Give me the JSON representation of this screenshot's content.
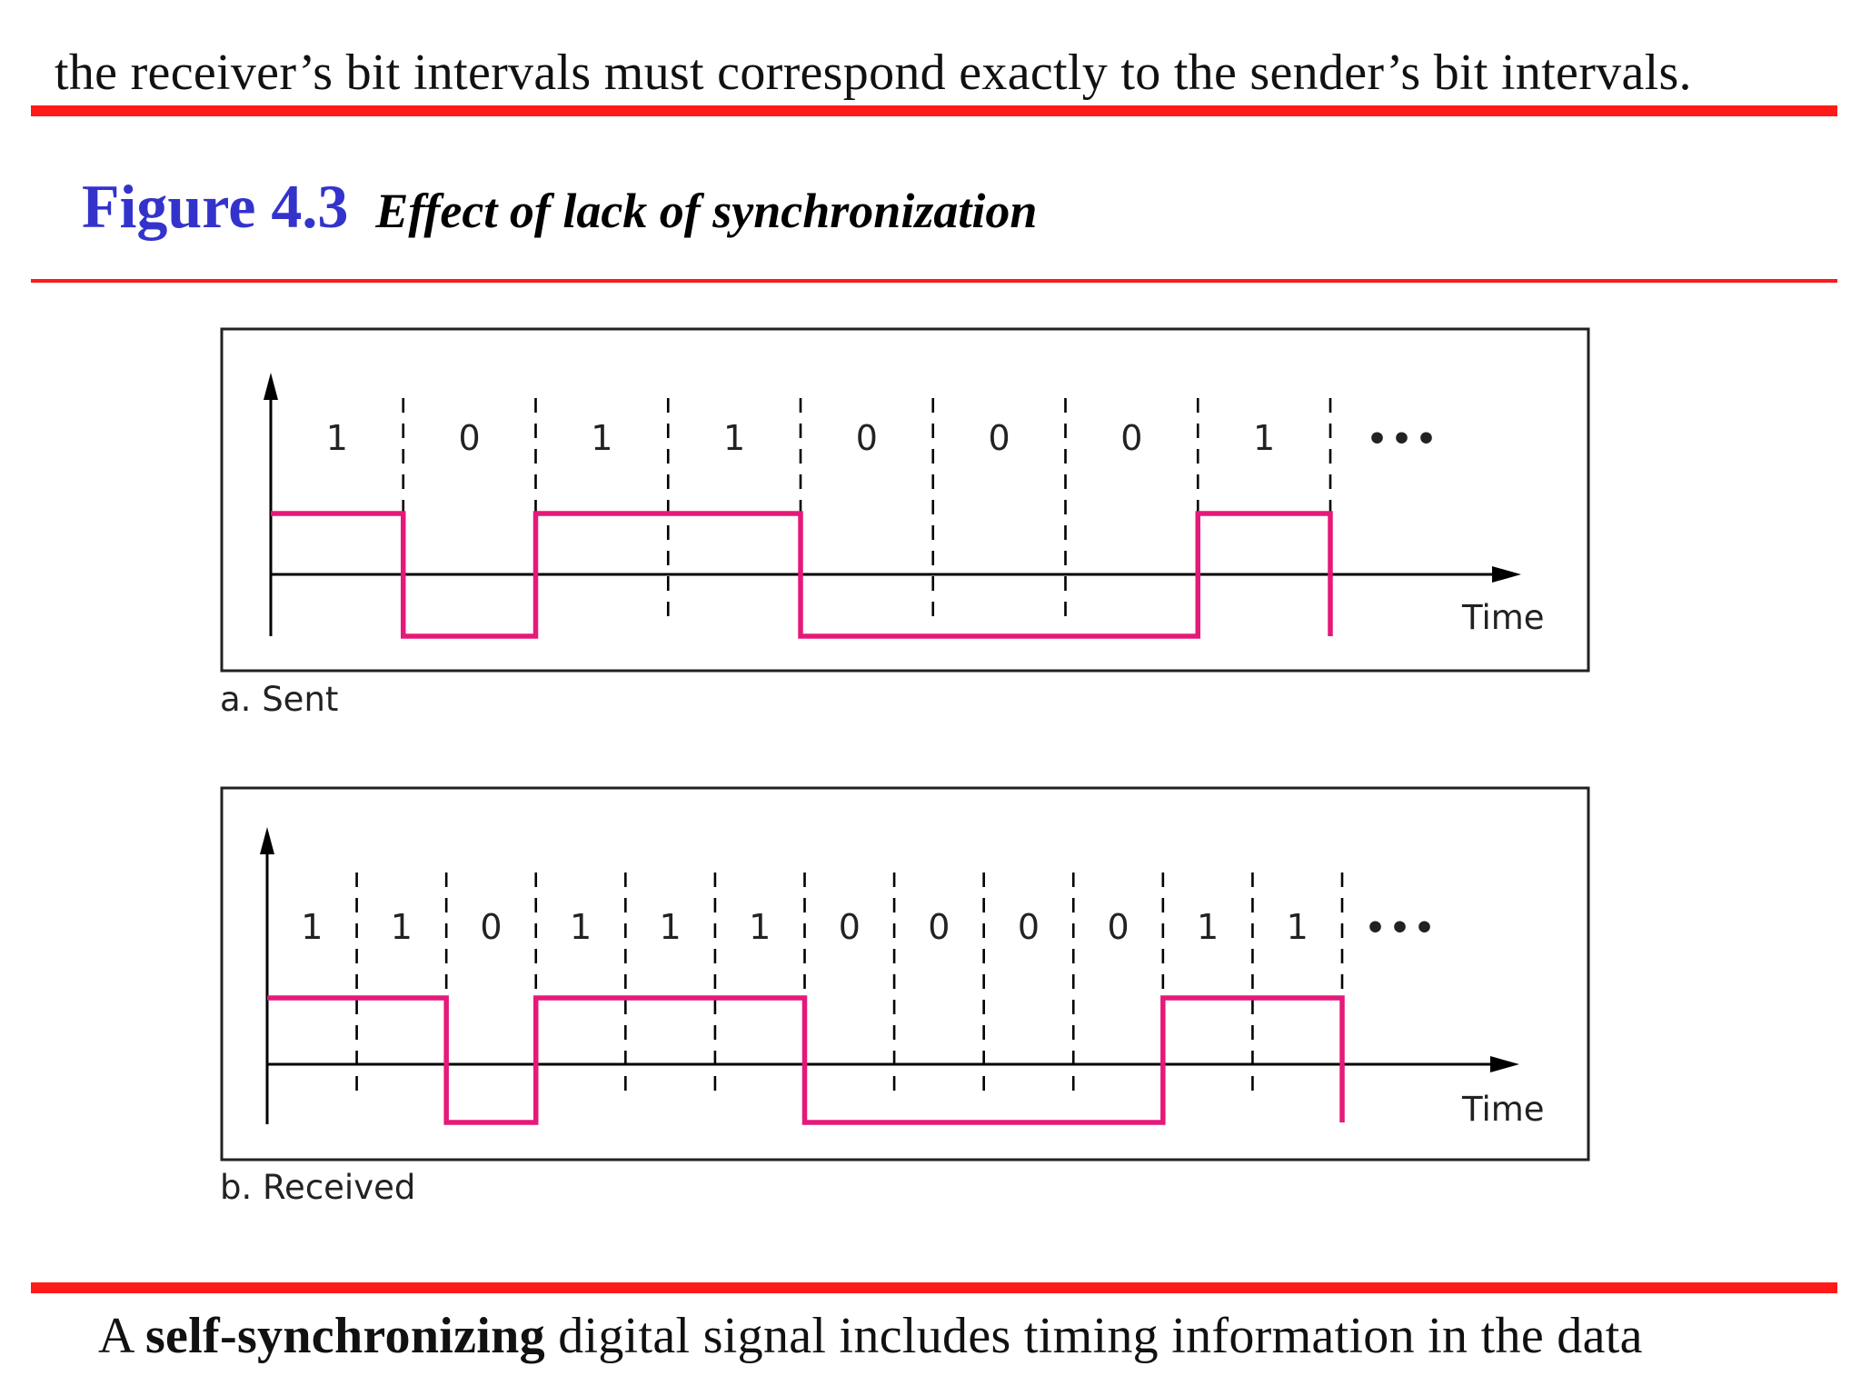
{
  "top_sentence": "the receiver’s bit intervals must correspond exactly to the sender’s bit intervals.",
  "figure": {
    "number": "Figure 4.3",
    "caption": "Effect of lack of synchronization"
  },
  "panels": [
    {
      "id": "sent",
      "caption": "a. Sent",
      "axis_label": "Time",
      "bits": [
        "1",
        "0",
        "1",
        "1",
        "0",
        "0",
        "0",
        "1"
      ],
      "continuation": "•••",
      "levels": [
        1,
        0,
        1,
        1,
        0,
        0,
        0,
        1
      ]
    },
    {
      "id": "received",
      "caption": "b. Received",
      "axis_label": "Time",
      "bits": [
        "1",
        "1",
        "0",
        "1",
        "1",
        "1",
        "0",
        "0",
        "0",
        "0",
        "1",
        "1"
      ],
      "continuation": "•••",
      "levels": [
        1,
        1,
        0,
        1,
        1,
        1,
        0,
        0,
        0,
        0,
        1,
        1
      ]
    }
  ],
  "bottom_sentence": {
    "prefix": "A ",
    "bold": "self-synchronizing",
    "rest": " digital signal includes timing information in the data"
  },
  "colors": {
    "signal": "#e5197a",
    "rule": "#ff1a1a",
    "figure_number": "#3333cc"
  }
}
